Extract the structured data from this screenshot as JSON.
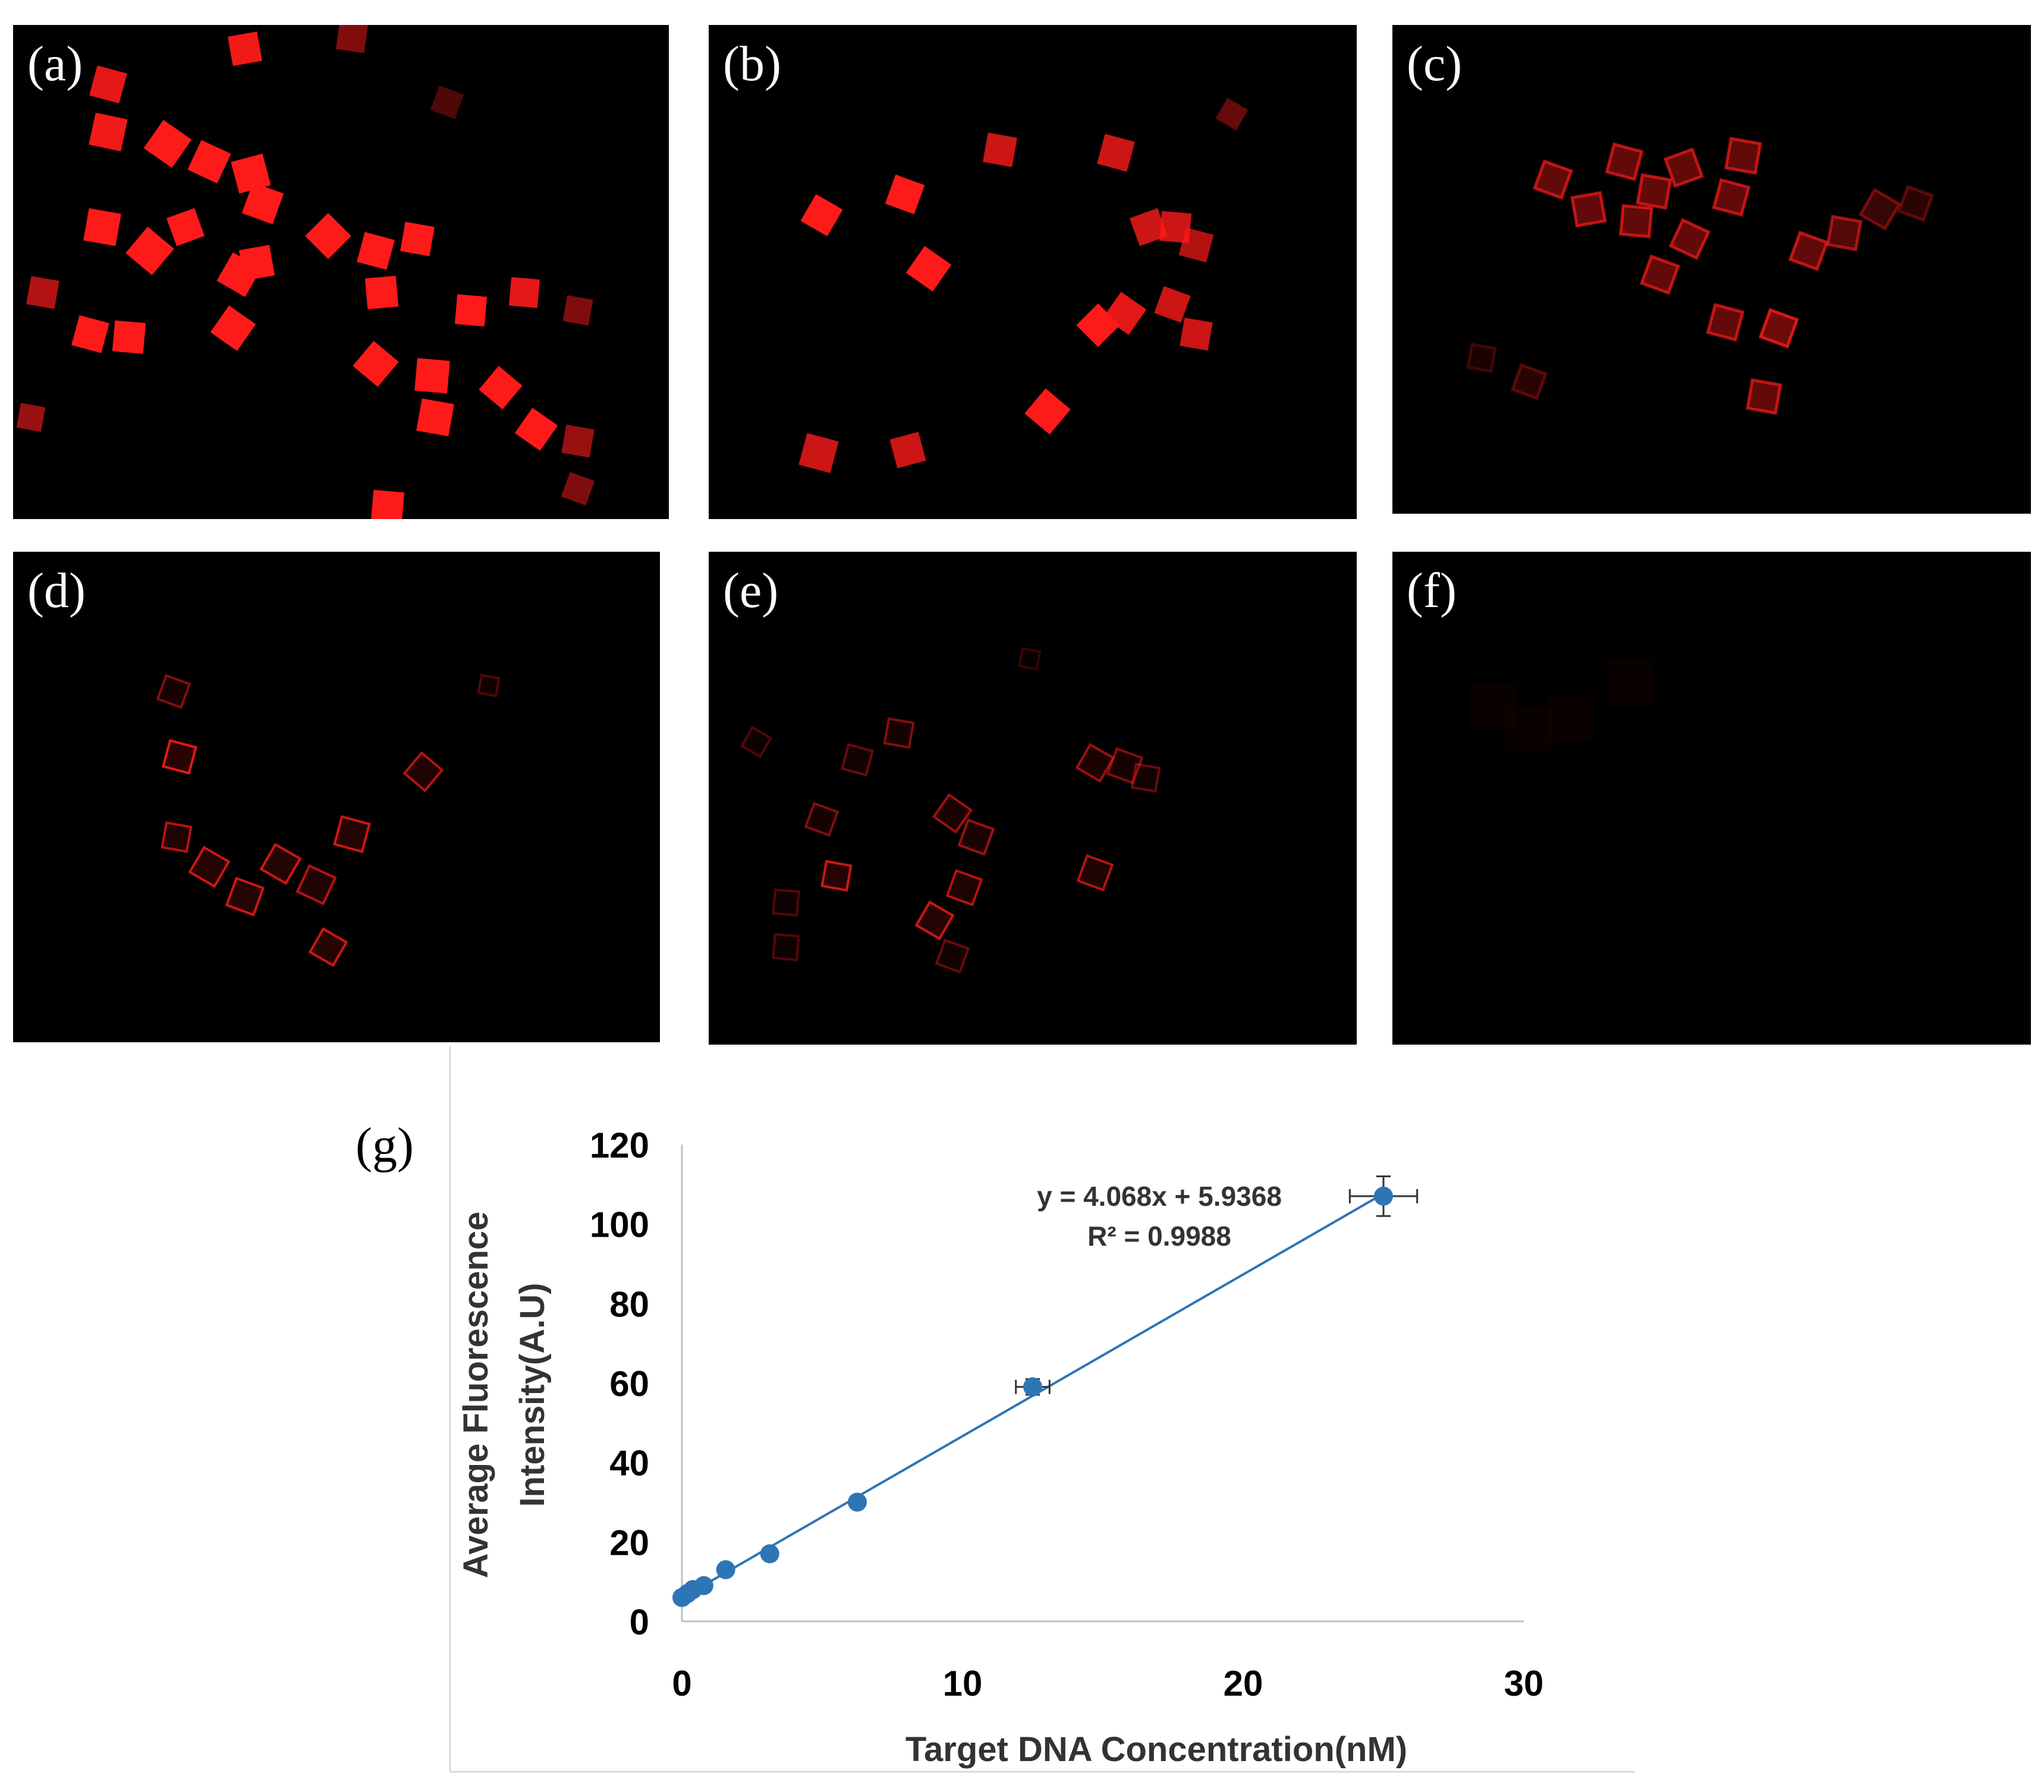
{
  "panels": [
    {
      "id": "a",
      "label": "(a)"
    },
    {
      "id": "b",
      "label": "(b)"
    },
    {
      "id": "c",
      "label": "(c)"
    },
    {
      "id": "d",
      "label": "(d)"
    },
    {
      "id": "e",
      "label": "(e)"
    },
    {
      "id": "f",
      "label": "(f)"
    }
  ],
  "colors": {
    "fluorescence": "#ff1a1a",
    "series": "#2e75b6",
    "axis": "#bfbfbf"
  },
  "chart_data": {
    "type": "scatter",
    "panel_label": "(g)",
    "xlabel": "Target DNA  Concentration(nM)",
    "ylabel_lines": [
      "Average Fluorescence",
      "Intensity(A.U)"
    ],
    "xlim": [
      0,
      30
    ],
    "ylim": [
      0,
      120
    ],
    "x_ticks": [
      0,
      10,
      20,
      30
    ],
    "y_ticks": [
      0,
      20,
      40,
      60,
      80,
      100,
      120
    ],
    "grid": false,
    "series": [
      {
        "points": [
          {
            "x": 0.0,
            "y": 6,
            "xerr": 0.0,
            "yerr": 0.8
          },
          {
            "x": 0.2,
            "y": 7,
            "xerr": 0.0,
            "yerr": 0.8
          },
          {
            "x": 0.39,
            "y": 8,
            "xerr": 0.0,
            "yerr": 0.8
          },
          {
            "x": 0.78,
            "y": 9,
            "xerr": 0.0,
            "yerr": 0.8
          },
          {
            "x": 1.56,
            "y": 13,
            "xerr": 0.0,
            "yerr": 1.0
          },
          {
            "x": 3.13,
            "y": 17,
            "xerr": 0.0,
            "yerr": 1.0
          },
          {
            "x": 6.25,
            "y": 30,
            "xerr": 0.0,
            "yerr": 1.2
          },
          {
            "x": 12.5,
            "y": 59,
            "xerr": 0.6,
            "yerr": 2.0
          },
          {
            "x": 25.0,
            "y": 107,
            "xerr": 1.2,
            "yerr": 5.0
          }
        ]
      }
    ],
    "trendline": {
      "slope": 4.068,
      "intercept": 5.9368,
      "x_range": [
        0,
        25
      ]
    },
    "annotation": {
      "equation": "y = 4.068x + 5.9368",
      "r2": "R² = 0.9988"
    }
  }
}
